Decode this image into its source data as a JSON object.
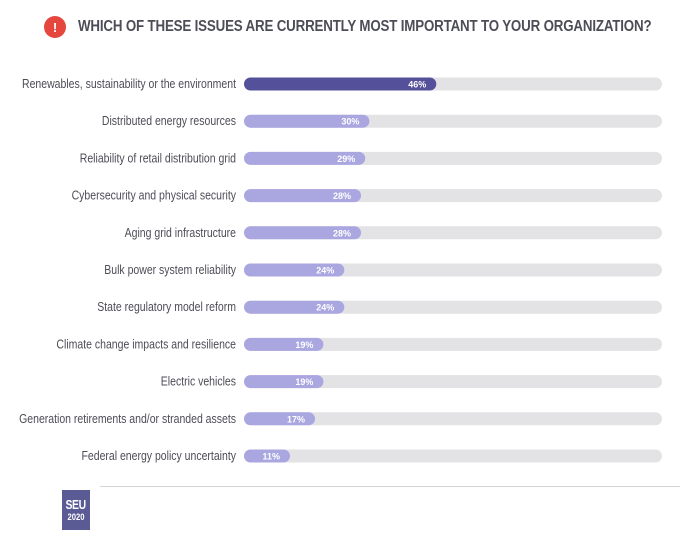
{
  "header": {
    "badge": "!",
    "title": "WHICH OF THESE ISSUES ARE CURRENTLY MOST IMPORTANT TO YOUR ORGANIZATION?"
  },
  "logo": {
    "line1": "SEU",
    "line2": "2020"
  },
  "colors": {
    "highlight_bar": "#55509a",
    "bar": "#aaa6e0",
    "track": "#e3e3e6",
    "label": "#4d4d57",
    "badge": "#e5473f"
  },
  "chart_data": {
    "type": "bar",
    "orientation": "horizontal",
    "title": "WHICH OF THESE ISSUES ARE CURRENTLY MOST IMPORTANT TO YOUR ORGANIZATION?",
    "categories": [
      "Renewables, sustainability or the environment",
      "Distributed energy resources",
      "Reliability of retail distribution grid",
      "Cybersecurity and physical security",
      "Aging grid infrastructure",
      "Bulk power system reliability",
      "State regulatory model reform",
      "Climate change impacts and resilience",
      "Electric vehicles",
      "Generation retirements and/or stranded assets",
      "Federal energy policy uncertainty"
    ],
    "values": [
      46,
      30,
      29,
      28,
      28,
      24,
      24,
      19,
      19,
      17,
      11
    ],
    "value_labels": [
      "46%",
      "30%",
      "29%",
      "28%",
      "28%",
      "24%",
      "24%",
      "19%",
      "19%",
      "17%",
      "11%"
    ],
    "xlim": [
      0,
      100
    ],
    "highlighted_index": 0
  }
}
